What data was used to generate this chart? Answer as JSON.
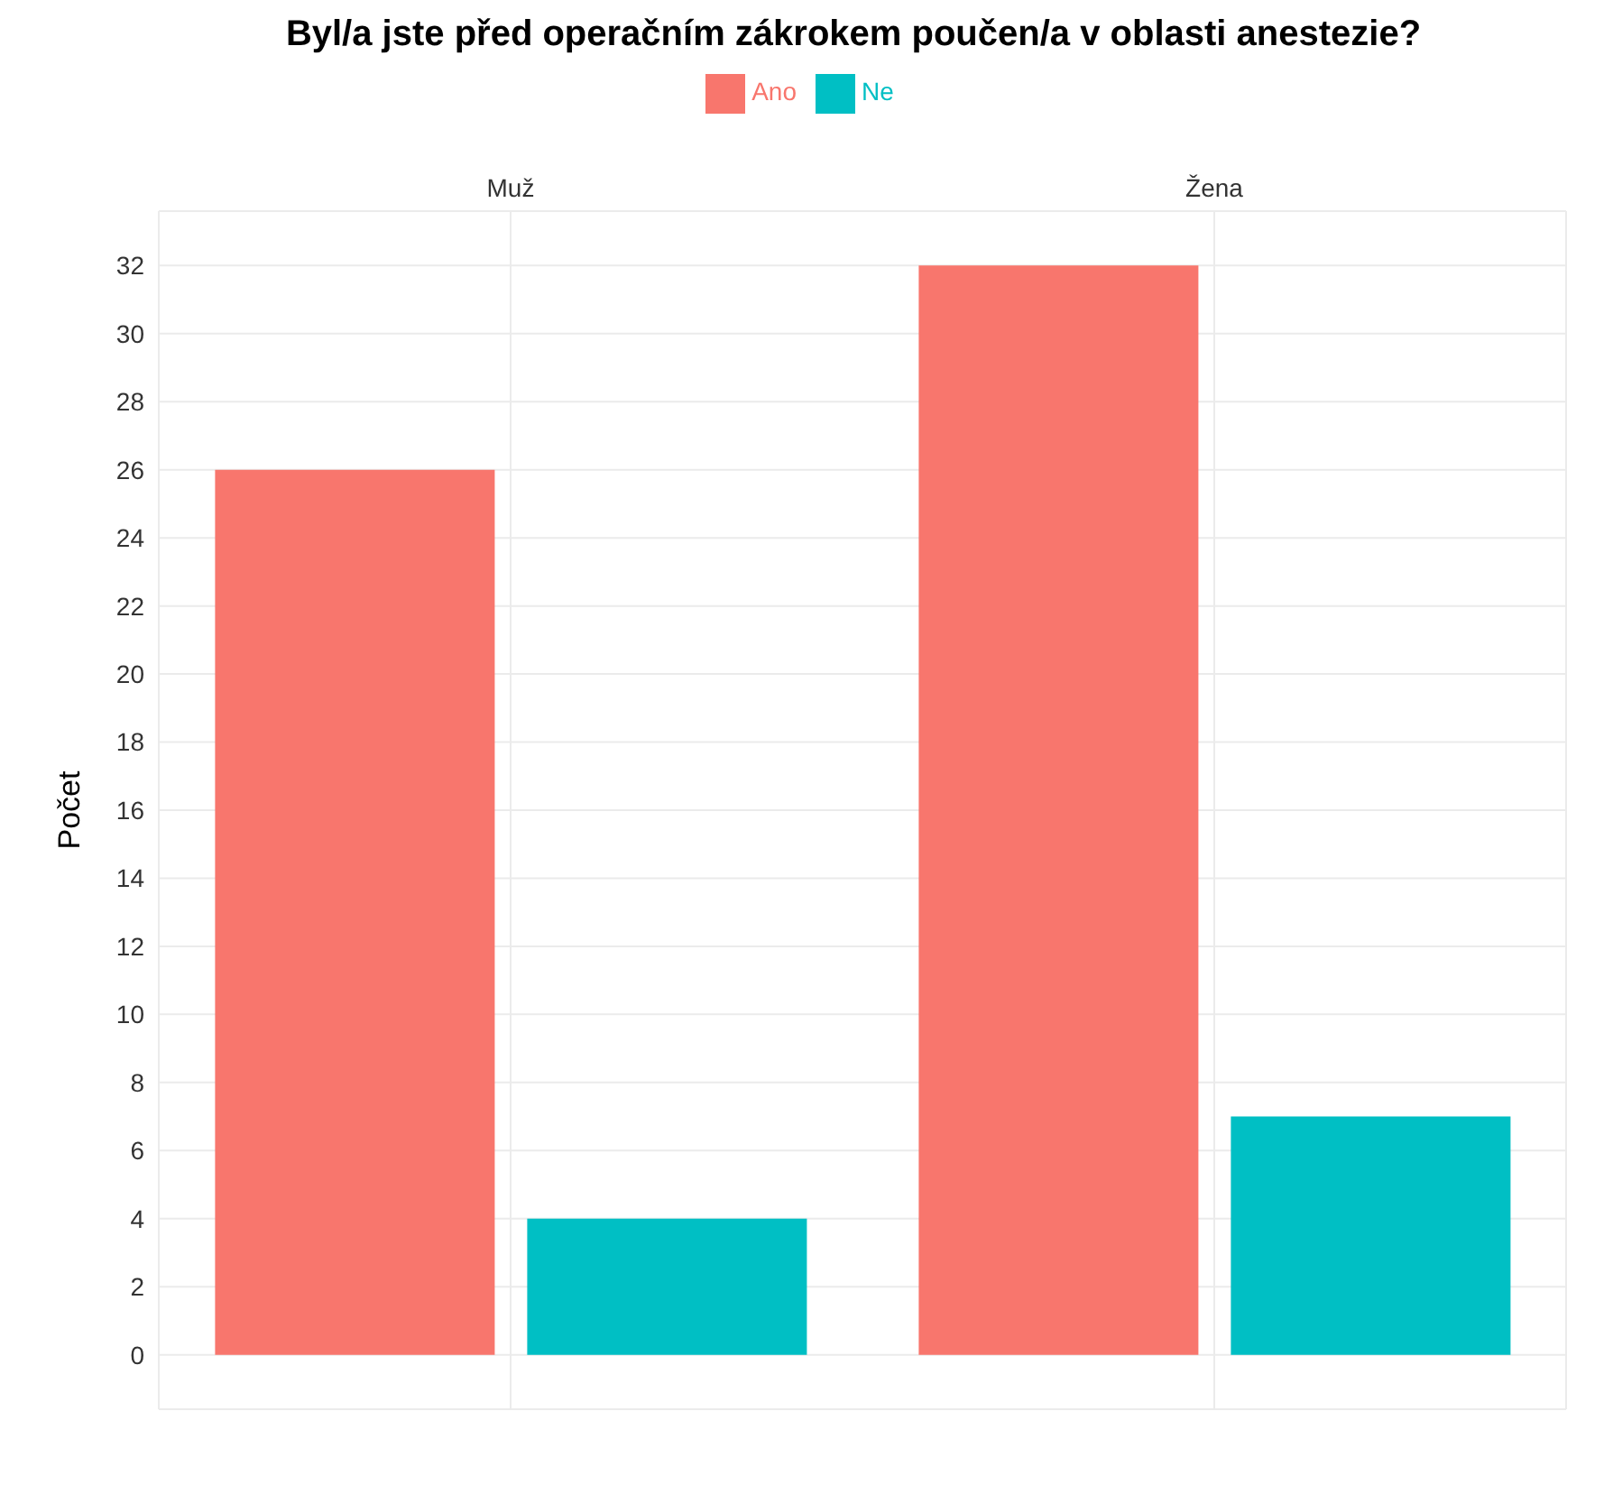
{
  "chart_data": {
    "type": "bar",
    "title": "Byl/a jste před operačním zákrokem poučen/a v oblasti anestezie?",
    "ylabel": "Počet",
    "categories": [
      "Muž",
      "Žena"
    ],
    "series": [
      {
        "name": "Ano",
        "color": "#f8766d",
        "values": [
          26,
          32
        ]
      },
      {
        "name": "Ne",
        "color": "#00bfc4",
        "values": [
          4,
          7
        ]
      }
    ],
    "ylim": [
      -1.6,
      33.6
    ],
    "yticks": [
      0,
      2,
      4,
      6,
      8,
      10,
      12,
      14,
      16,
      18,
      20,
      22,
      24,
      26,
      28,
      30,
      32
    ],
    "grid": true,
    "legend": "top"
  }
}
